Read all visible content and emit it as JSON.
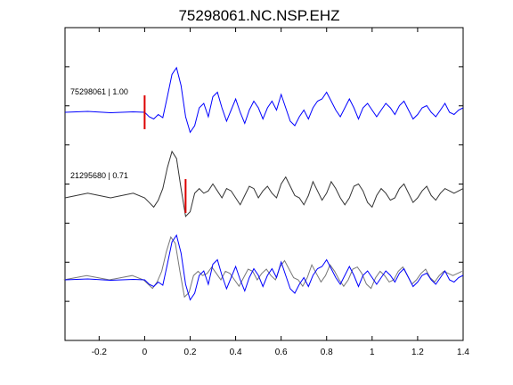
{
  "chart_data": {
    "type": "line",
    "title": "75298061.NC.NSP.EHZ",
    "xlabel": "",
    "ylabel": "",
    "xlim": [
      -0.35,
      1.4
    ],
    "x_ticks": [
      -0.2,
      0,
      0.2,
      0.4,
      0.6,
      0.8,
      1,
      1.2,
      1.4
    ],
    "x_tick_labels": [
      "-0.2",
      "0",
      "0.2",
      "0.4",
      "0.6",
      "0.8",
      "1",
      "1.2",
      "1.4"
    ],
    "y_tick_count": 7,
    "grid": false,
    "colors": {
      "primary": "#0000ff",
      "secondary": "#333333",
      "marker": "#dd0000"
    },
    "panels": [
      {
        "label": "75298061 | 1.00",
        "color": "#0000ff",
        "marker_x": 0.0,
        "x": [
          -0.35,
          -0.25,
          -0.15,
          -0.05,
          0.0,
          0.02,
          0.04,
          0.06,
          0.08,
          0.1,
          0.12,
          0.14,
          0.16,
          0.18,
          0.2,
          0.22,
          0.24,
          0.26,
          0.28,
          0.3,
          0.32,
          0.34,
          0.36,
          0.38,
          0.4,
          0.42,
          0.44,
          0.46,
          0.48,
          0.5,
          0.52,
          0.54,
          0.56,
          0.58,
          0.6,
          0.62,
          0.64,
          0.66,
          0.68,
          0.7,
          0.72,
          0.74,
          0.76,
          0.78,
          0.8,
          0.82,
          0.84,
          0.86,
          0.88,
          0.9,
          0.92,
          0.94,
          0.96,
          0.98,
          1.0,
          1.02,
          1.04,
          1.06,
          1.08,
          1.1,
          1.12,
          1.14,
          1.16,
          1.18,
          1.2,
          1.22,
          1.24,
          1.26,
          1.28,
          1.3,
          1.32,
          1.34,
          1.36,
          1.38,
          1.4
        ],
        "y": [
          0.0,
          0.02,
          -0.01,
          0.01,
          0.0,
          -0.1,
          -0.15,
          -0.05,
          -0.12,
          0.35,
          0.85,
          1.0,
          0.6,
          -0.1,
          -0.45,
          -0.3,
          0.1,
          0.2,
          -0.1,
          0.35,
          0.45,
          0.1,
          -0.2,
          0.05,
          0.3,
          0.0,
          -0.25,
          0.05,
          0.25,
          0.1,
          -0.15,
          0.1,
          0.25,
          0.05,
          0.4,
          0.1,
          -0.2,
          -0.3,
          -0.1,
          0.05,
          -0.15,
          0.1,
          0.25,
          0.3,
          0.45,
          0.25,
          0.05,
          -0.1,
          0.1,
          0.3,
          0.1,
          -0.15,
          0.1,
          0.2,
          0.05,
          -0.1,
          0.05,
          0.2,
          0.1,
          -0.05,
          0.15,
          0.25,
          0.05,
          -0.15,
          -0.05,
          0.1,
          0.15,
          0.0,
          -0.1,
          0.05,
          0.2,
          0.0,
          -0.05,
          0.05,
          0.1
        ]
      },
      {
        "label": "21295680 | 0.71",
        "color": "#333333",
        "marker_x": 0.18,
        "x": [
          -0.35,
          -0.3,
          -0.25,
          -0.2,
          -0.15,
          -0.1,
          -0.05,
          0.0,
          0.02,
          0.04,
          0.06,
          0.08,
          0.1,
          0.12,
          0.14,
          0.16,
          0.18,
          0.2,
          0.22,
          0.24,
          0.26,
          0.28,
          0.3,
          0.32,
          0.34,
          0.36,
          0.38,
          0.4,
          0.42,
          0.44,
          0.46,
          0.48,
          0.5,
          0.52,
          0.54,
          0.56,
          0.58,
          0.6,
          0.62,
          0.64,
          0.66,
          0.68,
          0.7,
          0.72,
          0.74,
          0.76,
          0.78,
          0.8,
          0.82,
          0.84,
          0.86,
          0.88,
          0.9,
          0.92,
          0.94,
          0.96,
          0.98,
          1.0,
          1.02,
          1.04,
          1.06,
          1.08,
          1.1,
          1.12,
          1.14,
          1.16,
          1.18,
          1.2,
          1.22,
          1.24,
          1.26,
          1.28,
          1.3,
          1.32,
          1.34,
          1.36,
          1.38,
          1.4
        ],
        "y": [
          0.0,
          0.05,
          0.1,
          0.05,
          0.0,
          0.05,
          0.1,
          0.0,
          -0.1,
          -0.2,
          -0.05,
          0.2,
          0.65,
          1.0,
          0.85,
          0.2,
          -0.4,
          -0.3,
          0.1,
          0.2,
          0.1,
          0.15,
          0.3,
          0.15,
          0.0,
          0.2,
          0.15,
          0.0,
          -0.15,
          0.05,
          0.25,
          0.2,
          0.0,
          0.15,
          0.25,
          0.1,
          0.0,
          0.3,
          0.45,
          0.25,
          0.05,
          0.0,
          -0.15,
          0.05,
          0.35,
          0.15,
          -0.05,
          0.1,
          0.35,
          0.2,
          0.0,
          -0.15,
          0.0,
          0.25,
          0.3,
          0.15,
          -0.1,
          -0.2,
          0.05,
          0.2,
          0.1,
          -0.05,
          0.0,
          0.2,
          0.3,
          0.1,
          -0.1,
          0.0,
          0.15,
          0.25,
          0.05,
          -0.05,
          0.1,
          0.2,
          0.15,
          0.1,
          0.15,
          0.2
        ]
      }
    ]
  }
}
